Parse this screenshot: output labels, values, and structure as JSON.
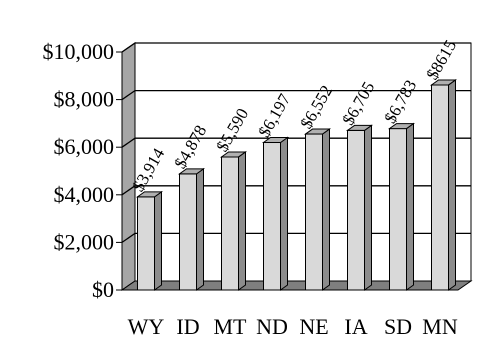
{
  "chart_data": {
    "type": "bar",
    "categories": [
      "WY",
      "ID",
      "MT",
      "ND",
      "NE",
      "IA",
      "SD",
      "MN"
    ],
    "values": [
      3914,
      4878,
      5590,
      6197,
      6552,
      6705,
      6783,
      8615
    ],
    "data_labels": [
      "$3,914",
      "$4,878",
      "$5,590",
      "$6,197",
      "$6,552",
      "$6,705",
      "$6,783",
      "$8615"
    ],
    "ylim": [
      0,
      10000
    ],
    "yticks": [
      0,
      2000,
      4000,
      6000,
      8000,
      10000
    ],
    "ytick_labels": [
      "$0",
      "$2,000",
      "$4,000",
      "$6,000",
      "$8,000",
      "$10,000"
    ],
    "grid": true,
    "legend": "none",
    "style": "3d",
    "colors": {
      "bar_front": "#d9d9d9",
      "bar_side": "#8c8c8c",
      "bar_top": "#b0b0b0",
      "wall": "#ffffff",
      "wall_side": "#a6a6a6",
      "floor": "#7f7f7f",
      "gridline": "#000000"
    }
  }
}
